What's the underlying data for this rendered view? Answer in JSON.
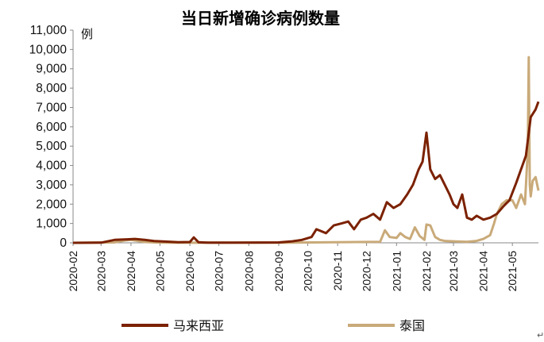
{
  "chart_data": {
    "type": "line",
    "title": "当日新增确诊病例数量",
    "ylabel": "例",
    "ylim": [
      0,
      11000
    ],
    "yticks": [
      0,
      1000,
      2000,
      3000,
      4000,
      5000,
      6000,
      7000,
      8000,
      9000,
      10000,
      11000
    ],
    "ytick_labels": [
      "0",
      "1,000",
      "2,000",
      "3,000",
      "4,000",
      "5,000",
      "6,000",
      "7,000",
      "8,000",
      "9,000",
      "10,000",
      "11,000"
    ],
    "xticks": [
      "2020-02",
      "2020-03",
      "2020-04",
      "2020-05",
      "2020-06",
      "2020-07",
      "2020-08",
      "2020-09",
      "2020-10",
      "2020-11",
      "2020-12",
      "2021-01",
      "2021-02",
      "2021-03",
      "2021-04",
      "2021-05"
    ],
    "legend_position": "bottom",
    "grid": false,
    "series": [
      {
        "name": "马来西亚",
        "color": "#7B2100",
        "x": [
          "2020-02-01",
          "2020-03-01",
          "2020-03-15",
          "2020-03-28",
          "2020-04-05",
          "2020-04-15",
          "2020-04-25",
          "2020-05-08",
          "2020-05-20",
          "2020-06-01",
          "2020-06-05",
          "2020-06-10",
          "2020-06-20",
          "2020-07-15",
          "2020-08-15",
          "2020-09-01",
          "2020-09-15",
          "2020-09-25",
          "2020-10-05",
          "2020-10-10",
          "2020-10-20",
          "2020-10-28",
          "2020-11-05",
          "2020-11-12",
          "2020-11-18",
          "2020-11-25",
          "2020-12-01",
          "2020-12-08",
          "2020-12-15",
          "2020-12-22",
          "2020-12-29",
          "2021-01-05",
          "2021-01-12",
          "2021-01-18",
          "2021-01-24",
          "2021-01-28",
          "2021-02-01",
          "2021-02-05",
          "2021-02-10",
          "2021-02-15",
          "2021-02-20",
          "2021-02-25",
          "2021-03-01",
          "2021-03-05",
          "2021-03-10",
          "2021-03-15",
          "2021-03-20",
          "2021-03-25",
          "2021-04-01",
          "2021-04-08",
          "2021-04-15",
          "2021-04-22",
          "2021-04-28",
          "2021-05-05",
          "2021-05-10",
          "2021-05-15",
          "2021-05-20",
          "2021-05-25",
          "2021-05-28"
        ],
        "values": [
          0,
          10,
          150,
          180,
          200,
          150,
          90,
          60,
          30,
          40,
          280,
          30,
          10,
          10,
          15,
          20,
          80,
          150,
          300,
          700,
          500,
          900,
          1000,
          1100,
          700,
          1200,
          1300,
          1500,
          1200,
          2100,
          1800,
          2000,
          2500,
          3000,
          3800,
          4200,
          5700,
          3800,
          3300,
          3500,
          3000,
          2500,
          2000,
          1800,
          2500,
          1300,
          1200,
          1400,
          1200,
          1300,
          1500,
          1900,
          2200,
          3100,
          3800,
          4500,
          6500,
          6900,
          7300
        ]
      },
      {
        "name": "泰国",
        "color": "#C9AA79",
        "x": [
          "2020-02-01",
          "2020-03-15",
          "2020-03-25",
          "2020-04-01",
          "2020-04-15",
          "2020-05-01",
          "2020-06-01",
          "2020-09-01",
          "2020-12-15",
          "2020-12-20",
          "2020-12-25",
          "2021-01-01",
          "2021-01-05",
          "2021-01-10",
          "2021-01-15",
          "2021-01-20",
          "2021-01-25",
          "2021-01-30",
          "2021-02-01",
          "2021-02-05",
          "2021-02-10",
          "2021-02-15",
          "2021-02-20",
          "2021-03-01",
          "2021-03-15",
          "2021-03-25",
          "2021-04-01",
          "2021-04-08",
          "2021-04-12",
          "2021-04-15",
          "2021-04-20",
          "2021-04-25",
          "2021-05-01",
          "2021-05-05",
          "2021-05-10",
          "2021-05-14",
          "2021-05-17",
          "2021-05-18",
          "2021-05-19",
          "2021-05-20",
          "2021-05-22",
          "2021-05-25",
          "2021-05-28"
        ],
        "values": [
          0,
          20,
          120,
          150,
          40,
          10,
          5,
          5,
          50,
          650,
          300,
          250,
          500,
          300,
          200,
          800,
          350,
          150,
          950,
          900,
          300,
          150,
          100,
          80,
          50,
          100,
          200,
          400,
          1000,
          1500,
          2000,
          2200,
          2200,
          1800,
          2500,
          2000,
          4800,
          9600,
          3000,
          2400,
          3200,
          3400,
          2700
        ]
      }
    ]
  }
}
